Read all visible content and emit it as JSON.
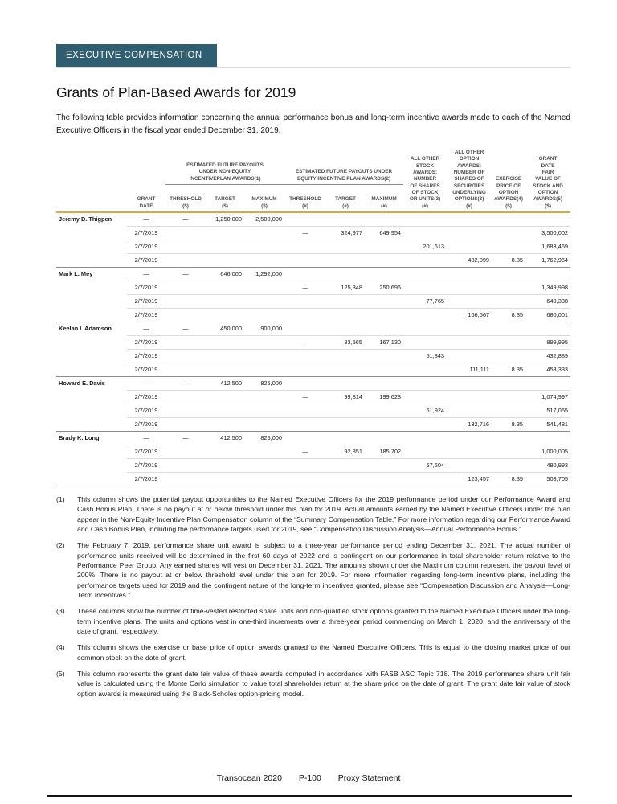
{
  "banner": {
    "label": "EXECUTIVE COMPENSATION"
  },
  "page": {
    "title": "Grants of Plan-Based Awards for 2019",
    "intro": "The following table provides information concerning the annual performance bonus and long-term incentive awards made to each of the Named Executive Officers in the fiscal year ended December 31, 2019."
  },
  "table": {
    "group_headers": {
      "non_equity": "ESTIMATED FUTURE PAYOUTS\nUNDER NON-EQUITY\nINCENTIVEPLAN AWARDS(1)",
      "equity": "ESTIMATED FUTURE PAYOUTS UNDER\nEQUITY INCENTIVE PLAN AWARDS(2)"
    },
    "headers": {
      "grant_date": "GRANT\nDATE",
      "threshold_usd": "THRESHOLD\n($)",
      "target_usd": "TARGET\n($)",
      "maximum_usd": "MAXIMUM\n($)",
      "threshold_num": "THRESHOLD\n(#)",
      "target_num": "TARGET\n(#)",
      "maximum_num": "MAXIMUM\n(#)",
      "stock_awards": "ALL OTHER\nSTOCK\nAWARDS:\nNUMBER\nOF SHARES\nOF STOCK\nOR UNITS(3)\n(#)",
      "option_awards": "ALL OTHER\nOPTION\nAWARDS:\nNUMBER OF\nSHARES OF\nSECURITIES\nUNDERLYING\nOPTIONS(3)\n(#)",
      "exercise_price": "EXERCISE\nPRICE OF\nOPTION\nAWARDS(4)\n($)",
      "grant_date_fair_value": "GRANT\nDATE\nFAIR\nVALUE OF\nSTOCK AND\nOPTION\nAWARDS(5)\n($)"
    },
    "executives": [
      {
        "name": "Jeremy D. Thigpen",
        "rows": [
          [
            "—",
            "—",
            "1,250,000",
            "2,500,000",
            "",
            "",
            "",
            "",
            "",
            "",
            ""
          ],
          [
            "2/7/2019",
            "",
            "",
            "",
            "—",
            "324,977",
            "649,954",
            "",
            "",
            "",
            "3,500,002"
          ],
          [
            "2/7/2019",
            "",
            "",
            "",
            "",
            "",
            "",
            "201,613",
            "",
            "",
            "1,683,469"
          ],
          [
            "2/7/2019",
            "",
            "",
            "",
            "",
            "",
            "",
            "",
            "432,099",
            "8.35",
            "1,762,964"
          ]
        ]
      },
      {
        "name": "Mark L. Mey",
        "rows": [
          [
            "—",
            "—",
            "646,000",
            "1,292,000",
            "",
            "",
            "",
            "",
            "",
            "",
            ""
          ],
          [
            "2/7/2019",
            "",
            "",
            "",
            "—",
            "125,348",
            "250,696",
            "",
            "",
            "",
            "1,349,998"
          ],
          [
            "2/7/2019",
            "",
            "",
            "",
            "",
            "",
            "",
            "77,765",
            "",
            "",
            "649,338"
          ],
          [
            "2/7/2019",
            "",
            "",
            "",
            "",
            "",
            "",
            "",
            "166,667",
            "8.35",
            "680,001"
          ]
        ]
      },
      {
        "name": "Keelan I. Adamson",
        "rows": [
          [
            "—",
            "—",
            "450,000",
            "900,000",
            "",
            "",
            "",
            "",
            "",
            "",
            ""
          ],
          [
            "2/7/2019",
            "",
            "",
            "",
            "—",
            "83,565",
            "167,130",
            "",
            "",
            "",
            "899,995"
          ],
          [
            "2/7/2019",
            "",
            "",
            "",
            "",
            "",
            "",
            "51,843",
            "",
            "",
            "432,889"
          ],
          [
            "2/7/2019",
            "",
            "",
            "",
            "",
            "",
            "",
            "",
            "111,111",
            "8.35",
            "453,333"
          ]
        ]
      },
      {
        "name": "Howard E. Davis",
        "rows": [
          [
            "—",
            "—",
            "412,500",
            "825,000",
            "",
            "",
            "",
            "",
            "",
            "",
            ""
          ],
          [
            "2/7/2019",
            "",
            "",
            "",
            "—",
            "99,814",
            "199,628",
            "",
            "",
            "",
            "1,074,997"
          ],
          [
            "2/7/2019",
            "",
            "",
            "",
            "",
            "",
            "",
            "61,924",
            "",
            "",
            "517,065"
          ],
          [
            "2/7/2019",
            "",
            "",
            "",
            "",
            "",
            "",
            "",
            "132,716",
            "8.35",
            "541,481"
          ]
        ]
      },
      {
        "name": "Brady K. Long",
        "rows": [
          [
            "—",
            "—",
            "412,500",
            "825,000",
            "",
            "",
            "",
            "",
            "",
            "",
            ""
          ],
          [
            "2/7/2019",
            "",
            "",
            "",
            "—",
            "92,851",
            "185,702",
            "",
            "",
            "",
            "1,000,005"
          ],
          [
            "2/7/2019",
            "",
            "",
            "",
            "",
            "",
            "",
            "57,604",
            "",
            "",
            "480,993"
          ],
          [
            "2/7/2019",
            "",
            "",
            "",
            "",
            "",
            "",
            "",
            "123,457",
            "8.35",
            "503,705"
          ]
        ]
      }
    ]
  },
  "footnotes": [
    {
      "num": "(1)",
      "text": "This column shows the potential payout opportunities to the Named Executive Officers for the 2019 performance period under our Performance Award and Cash Bonus Plan. There is no payout at or below threshold under this plan for 2019. Actual amounts earned by the Named Executive Officers under the plan appear in the Non-Equity Incentive Plan Compensation column of the “Summary Compensation Table.” For more information regarding our Performance Award and Cash Bonus Plan, including the performance targets used for 2019, see “Compensation Discussion Analysis—Annual Performance Bonus.”"
    },
    {
      "num": "(2)",
      "text": "The February 7, 2019, performance share unit award is subject to a three-year performance period ending December 31, 2021. The actual number of performance units received will be determined in the first 60 days of 2022 and is contingent on our performance in total shareholder return relative to the Performance Peer Group. Any earned shares will vest on December 31, 2021. The amounts shown under the Maximum column represent the payout level of 200%. There is no payout at or below threshold level under this plan for 2019. For more information regarding long-term incentive plans, including the performance targets used for 2019 and the contingent nature of the long-term incentives granted, please see “Compensation Discussion and Analysis—Long-Term Incentives.”"
    },
    {
      "num": "(3)",
      "text": "These columns show the number of time-vested restricted share units and non-qualified stock options granted to the Named Executive Officers under the long-term incentive plans. The units and options vest in one-third increments over a three-year period commencing on March 1, 2020, and the anniversary of the date of grant, respectively."
    },
    {
      "num": "(4)",
      "text": "This column shows the exercise or base price of option awards granted to the Named Executive Officers. This is equal to the closing market price of our common stock on the date of grant."
    },
    {
      "num": "(5)",
      "text": "This column represents the grant date fair value of these awards computed in accordance with FASB ASC Topic 718. The 2019 performance share unit fair value is calculated using the Monte Carlo simulation to value total shareholder return at the share price on the date of grant. The grant date fair value of stock option awards is measured using the Black-Scholes option-pricing model."
    }
  ],
  "footer": {
    "company": "Transocean 2020",
    "page_number": "P-100",
    "doc_type": "Proxy Statement"
  },
  "colors": {
    "banner_bg": "#2e5e70",
    "header_rule": "#e8a33c"
  }
}
